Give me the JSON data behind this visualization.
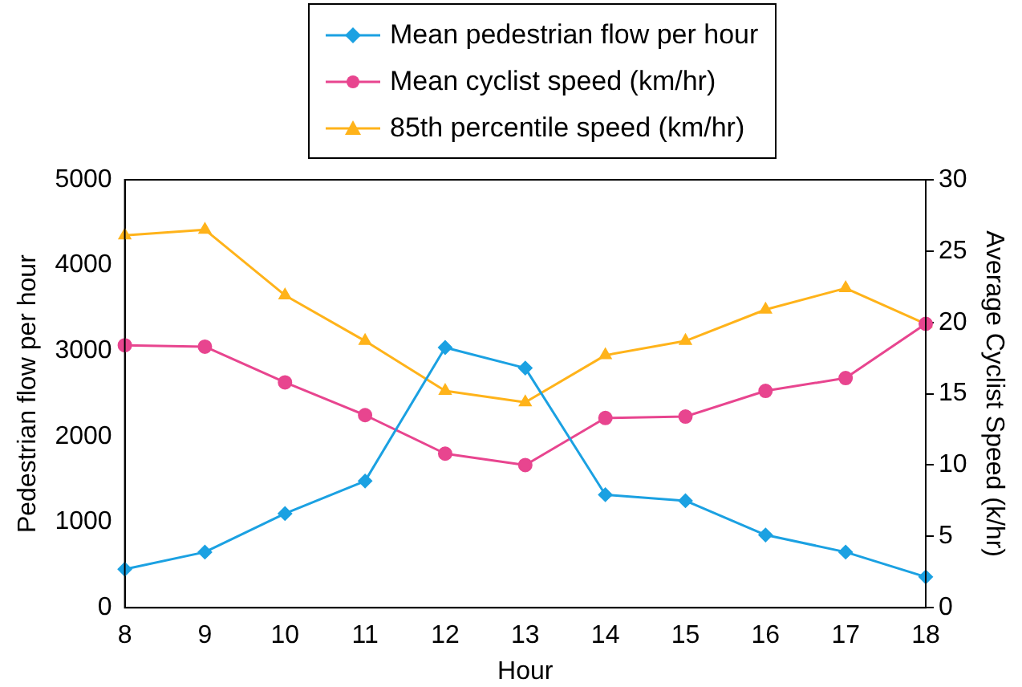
{
  "chart_data": {
    "type": "line",
    "xlabel": "Hour",
    "ylabel": "Pedestrian flow per hour",
    "y2label": "Average Cyclist Speed (k/hr)",
    "categories": [
      "8",
      "9",
      "10",
      "11",
      "12",
      "13",
      "14",
      "15",
      "16",
      "17",
      "18"
    ],
    "ylim": [
      0,
      5000
    ],
    "yticks": [
      0,
      1000,
      2000,
      3000,
      4000,
      5000
    ],
    "y2lim": [
      0,
      30
    ],
    "y2ticks": [
      0,
      5,
      10,
      15,
      20,
      25,
      30
    ],
    "grid": false,
    "legend": "top",
    "line_style": "solid",
    "series": [
      {
        "name": "Mean pedestrian flow per hour",
        "color": "#1ba1e2",
        "marker": "diamond",
        "values": [
          450,
          650,
          1100,
          1480,
          3040,
          2800,
          1320,
          1250,
          850,
          650,
          360
        ]
      },
      {
        "name": "Mean cyclist speed (km/hr)",
        "color": "#e8458f",
        "marker": "circle",
        "axis": "y2",
        "values": [
          18.4,
          18.3,
          15.8,
          13.5,
          10.8,
          10.0,
          13.3,
          13.4,
          15.2,
          16.1,
          19.9
        ]
      },
      {
        "name": "85th percentile speed (km/hr)",
        "color": "#ffb31a",
        "marker": "triangle",
        "axis": "y2",
        "values": [
          26.1,
          26.5,
          21.9,
          18.7,
          15.2,
          14.4,
          17.7,
          18.7,
          20.9,
          22.4,
          19.9
        ]
      }
    ]
  }
}
